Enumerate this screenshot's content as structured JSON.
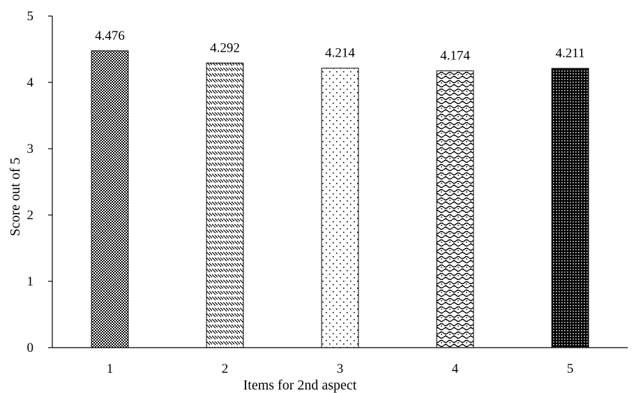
{
  "chart_data": {
    "type": "bar",
    "title": "",
    "xlabel": "Items for 2nd aspect",
    "ylabel": "Score out of 5",
    "categories": [
      "1",
      "2",
      "3",
      "4",
      "5"
    ],
    "values": [
      4.476,
      4.292,
      4.214,
      4.174,
      4.211
    ],
    "data_labels": [
      "4.476",
      "4.292",
      "4.214",
      "4.174",
      "4.211"
    ],
    "ylim": [
      0,
      5
    ],
    "yticks": [
      "0",
      "1",
      "2",
      "3",
      "4",
      "5"
    ],
    "grid": false,
    "legend": "none",
    "bar_patterns": [
      "checker-dense",
      "diagonal-dash",
      "dots-sparse",
      "wave-weave",
      "dots-dense"
    ],
    "colors": {
      "stroke": "#000000",
      "fill": "#ffffff"
    }
  }
}
